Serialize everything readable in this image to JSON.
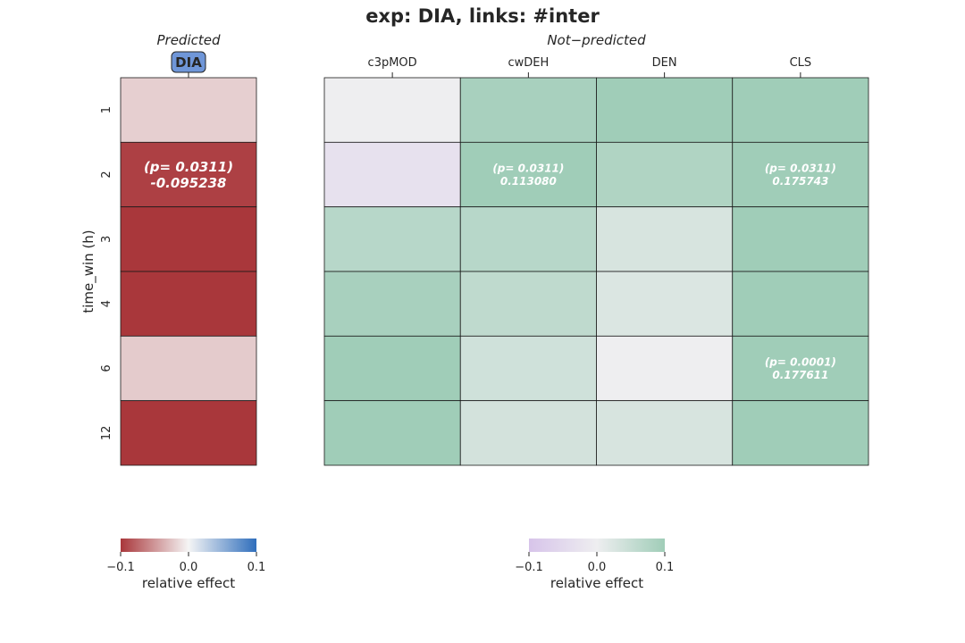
{
  "chart_data": {
    "type": "heatmap",
    "title": "exp: DIA, links: #inter",
    "ylabel": "time_win (h)",
    "rows": [
      "1",
      "2",
      "3",
      "4",
      "6",
      "12"
    ],
    "panels": [
      {
        "title": "Predicted",
        "columns": [
          "DIA"
        ],
        "highlight_column": "DIA",
        "colormap": "red-white-blue",
        "vmin": -0.1,
        "vmax": 0.1,
        "values": [
          [
            -0.02
          ],
          [
            -0.095238
          ],
          [
            -0.1
          ],
          [
            -0.1
          ],
          [
            -0.022
          ],
          [
            -0.1
          ]
        ],
        "annotations": [
          {
            "row": 1,
            "col": 0,
            "p_text": "(p= 0.0311)",
            "value_text": "-0.095238"
          }
        ],
        "colorbar": {
          "ticks": [
            "−0.1",
            "0.0",
            "0.1"
          ],
          "label": "relative effect"
        }
      },
      {
        "title": "Not−predicted",
        "columns": [
          "c3pMOD",
          "cwDEH",
          "DEN",
          "CLS"
        ],
        "colormap": "purple-white-green",
        "vmin": -0.1,
        "vmax": 0.1,
        "values": [
          [
            0.0,
            0.09,
            0.1,
            0.1
          ],
          [
            -0.03,
            0.11308,
            0.08,
            0.175743
          ],
          [
            0.07,
            0.07,
            0.03,
            0.1
          ],
          [
            0.09,
            0.06,
            0.025,
            0.1
          ],
          [
            0.1,
            0.04,
            0.0,
            0.177611
          ],
          [
            0.1,
            0.035,
            0.03,
            0.1
          ]
        ],
        "annotations": [
          {
            "row": 1,
            "col": 1,
            "p_text": "(p= 0.0311)",
            "value_text": "0.113080"
          },
          {
            "row": 1,
            "col": 3,
            "p_text": "(p= 0.0311)",
            "value_text": "0.175743"
          },
          {
            "row": 4,
            "col": 3,
            "p_text": "(p= 0.0001)",
            "value_text": "0.177611"
          }
        ],
        "colorbar": {
          "ticks": [
            "−0.1",
            "0.0",
            "0.1"
          ],
          "label": "relative effect"
        }
      }
    ]
  }
}
